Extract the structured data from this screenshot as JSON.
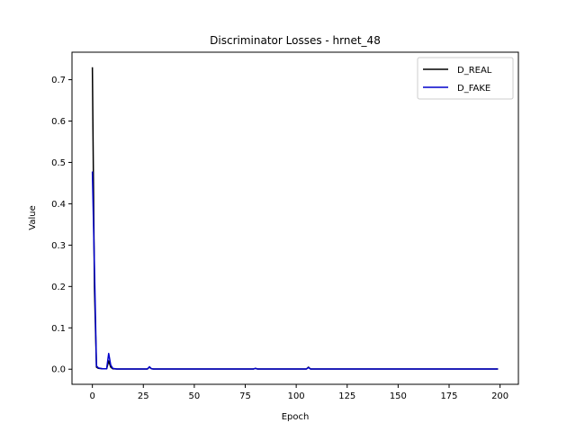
{
  "chart_data": {
    "type": "line",
    "title": "Discriminator Losses - hrnet_48",
    "xlabel": "Epoch",
    "ylabel": "Value",
    "xlim": [
      -10,
      209
    ],
    "ylim": [
      -0.0365,
      0.7665
    ],
    "xticks": [
      0,
      25,
      50,
      75,
      100,
      125,
      150,
      175,
      200
    ],
    "yticks": [
      0.0,
      0.1,
      0.2,
      0.3,
      0.4,
      0.5,
      0.6,
      0.7
    ],
    "ytick_labels": [
      "0.0",
      "0.1",
      "0.2",
      "0.3",
      "0.4",
      "0.5",
      "0.6",
      "0.7"
    ],
    "legend_position": "top-right",
    "grid": false,
    "series": [
      {
        "name": "D_REAL",
        "color": "#000000",
        "points": [
          [
            0,
            0.73
          ],
          [
            1,
            0.2
          ],
          [
            2,
            0.005
          ],
          [
            3,
            0.002
          ],
          [
            5,
            0.001
          ],
          [
            7,
            0.001
          ],
          [
            8,
            0.02
          ],
          [
            9,
            0.005
          ],
          [
            10,
            0.001
          ],
          [
            12,
            0.0005
          ],
          [
            27,
            0.0005
          ],
          [
            28,
            0.005
          ],
          [
            29,
            0.001
          ],
          [
            30,
            0.0005
          ],
          [
            79,
            0.0005
          ],
          [
            80,
            0.002
          ],
          [
            81,
            0.0005
          ],
          [
            105,
            0.0005
          ],
          [
            106,
            0.005
          ],
          [
            107,
            0.0005
          ],
          [
            199,
            0.0005
          ]
        ]
      },
      {
        "name": "D_FAKE",
        "color": "#0000cc",
        "points": [
          [
            0,
            0.478
          ],
          [
            1,
            0.25
          ],
          [
            2,
            0.008
          ],
          [
            3,
            0.003
          ],
          [
            5,
            0.001
          ],
          [
            7,
            0.001
          ],
          [
            8,
            0.038
          ],
          [
            9,
            0.01
          ],
          [
            10,
            0.002
          ],
          [
            12,
            0.0005
          ],
          [
            27,
            0.0005
          ],
          [
            28,
            0.006
          ],
          [
            29,
            0.001
          ],
          [
            30,
            0.0005
          ],
          [
            79,
            0.0005
          ],
          [
            80,
            0.002
          ],
          [
            81,
            0.0005
          ],
          [
            105,
            0.0005
          ],
          [
            106,
            0.004
          ],
          [
            107,
            0.0005
          ],
          [
            199,
            0.0005
          ]
        ]
      }
    ]
  }
}
